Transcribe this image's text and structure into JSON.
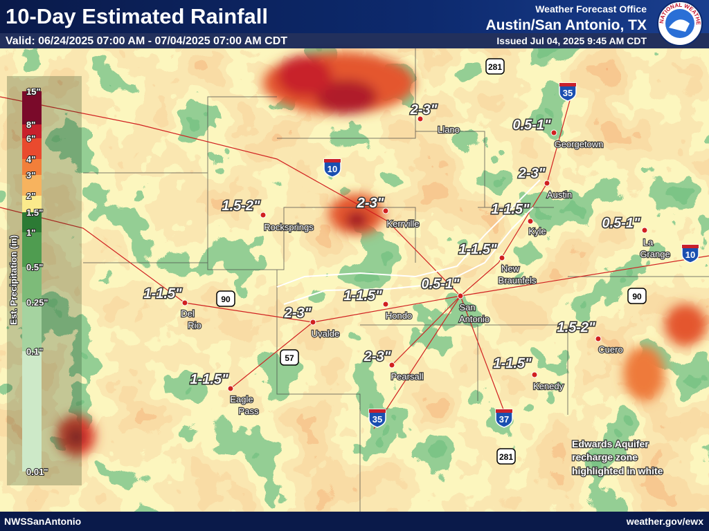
{
  "header": {
    "title": "10-Day Estimated Rainfall",
    "valid": "Valid: 06/24/2025 07:00 AM - 07/04/2025 07:00 AM CDT",
    "office": "Weather Forecast Office",
    "location": "Austin/San Antonio, TX",
    "issued": "Issued Jul 04, 2025 9:45 AM CDT"
  },
  "logo": {
    "text": "NATIONAL WEATHER SERVICE"
  },
  "legend": {
    "title": "Est. Precipitation (in)",
    "labels": [
      "15\"",
      "8\"",
      "6\"",
      "4\"",
      "3\"",
      "2\"",
      "1.5\"",
      "1\"",
      "0.5\"",
      "0.25\"",
      "0.1\"",
      "0.01\""
    ],
    "colors": [
      "#7a0a2a",
      "#c8202c",
      "#e94a2e",
      "#f27f3a",
      "#f7b35e",
      "#fbea8c",
      "#2c7a34",
      "#4f9c50",
      "#7dbb79",
      "#a5d3a0",
      "#cde9c8"
    ]
  },
  "cities": [
    {
      "amount": "2-3\"",
      "name": [
        "Llano"
      ]
    },
    {
      "amount": "0.5-1\"",
      "name": [
        "Georgetown"
      ]
    },
    {
      "amount": "2-3\"",
      "name": [
        "Austin"
      ]
    },
    {
      "amount": "1-1.5\"",
      "name": [
        "Kyle"
      ]
    },
    {
      "amount": "0.5-1\"",
      "name": [
        "La",
        "Grange"
      ]
    },
    {
      "amount": "1-1.5\"",
      "name": [
        "New",
        "Braunfels"
      ]
    },
    {
      "amount": "0.5-1\"",
      "name": [
        "San",
        "Antonio"
      ]
    },
    {
      "amount": "1-1.5\"",
      "name": [
        "Hondo"
      ]
    },
    {
      "amount": "2-3\"",
      "name": [
        "Uvalde"
      ]
    },
    {
      "amount": "1-1.5\"",
      "name": [
        "Del",
        "Rio"
      ]
    },
    {
      "amount": "1.5-2\"",
      "name": [
        "Rocksprings"
      ]
    },
    {
      "amount": "2-3\"",
      "name": [
        "Kerrville"
      ]
    },
    {
      "amount": "2-3\"",
      "name": [
        "Pearsall"
      ]
    },
    {
      "amount": "1-1.5\"",
      "name": [
        "Eagle",
        "Pass"
      ]
    },
    {
      "amount": "1.5-2\"",
      "name": [
        "Cuero"
      ]
    },
    {
      "amount": "1-1.5\"",
      "name": [
        "Kenedy"
      ]
    }
  ],
  "interstates": [
    "35",
    "10",
    "10",
    "35",
    "37"
  ],
  "us_highways": [
    "281",
    "281",
    "90",
    "90",
    "57"
  ],
  "note": [
    "Edwards Aquifer",
    "recharge zone",
    "highlighted in white"
  ],
  "footer": {
    "left": "NWSSanAntonio",
    "right": "weather.gov/ewx"
  }
}
